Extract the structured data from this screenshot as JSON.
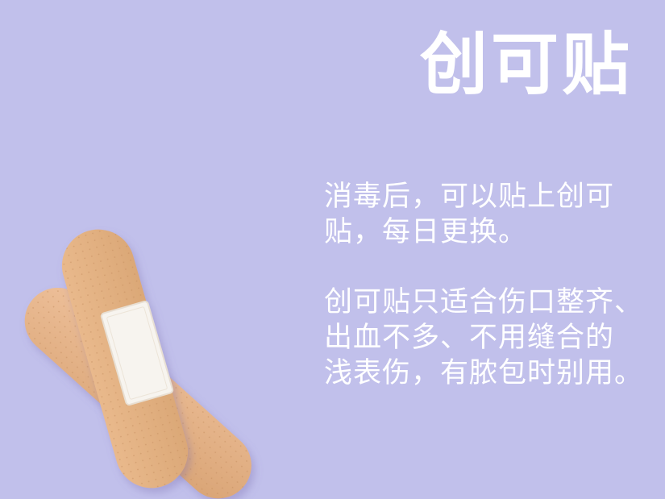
{
  "title": "创可贴",
  "paragraph1": {
    "lines": [
      "消毒后，可以贴上创可",
      "贴，每日更换。"
    ]
  },
  "paragraph2": {
    "lines": [
      "创可贴只适合伤口整齐、",
      "出血不多、不用缝合的",
      "浅表伤，有脓包时别用。"
    ]
  },
  "illustration": {
    "icon": "bandage-illustration",
    "colors": {
      "bandage": "#e4b58a",
      "bandage_shadow": "#c99565",
      "pad": "#f6f3ee",
      "background": "#c1c0eb"
    }
  }
}
